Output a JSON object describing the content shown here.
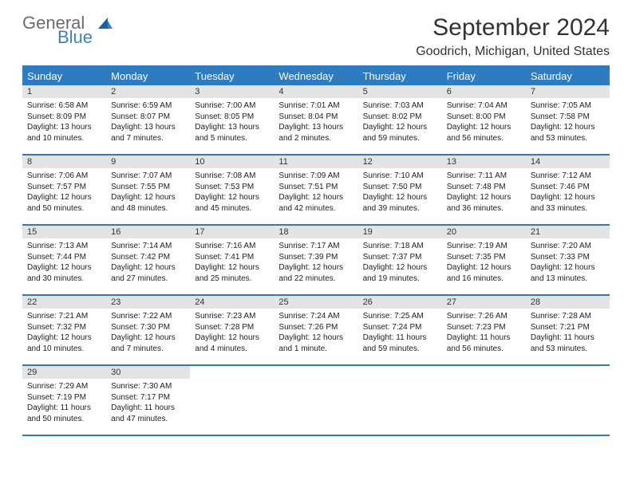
{
  "brand": {
    "general": "General",
    "blue": "Blue"
  },
  "title": "September 2024",
  "location": "Goodrich, Michigan, United States",
  "colors": {
    "header_bg": "#2e7bbf",
    "header_text": "#ffffff",
    "daynum_bg": "#e4e4e4",
    "rule": "#2e7bbf",
    "body_text": "#222222",
    "title_text": "#333333",
    "logo_gray": "#6b6b6b",
    "logo_blue": "#3b82c4",
    "page_bg": "#ffffff"
  },
  "typography": {
    "title_fontsize": 30,
    "location_fontsize": 16,
    "dow_fontsize": 13,
    "daynum_fontsize": 11,
    "body_fontsize": 10,
    "logo_fontsize": 22
  },
  "layout": {
    "cols": 7,
    "rows": 5,
    "leading_blanks": 0,
    "trailing_blanks": 5
  },
  "dow": [
    "Sunday",
    "Monday",
    "Tuesday",
    "Wednesday",
    "Thursday",
    "Friday",
    "Saturday"
  ],
  "days": [
    {
      "n": "1",
      "sunrise": "Sunrise: 6:58 AM",
      "sunset": "Sunset: 8:09 PM",
      "day1": "Daylight: 13 hours",
      "day2": "and 10 minutes."
    },
    {
      "n": "2",
      "sunrise": "Sunrise: 6:59 AM",
      "sunset": "Sunset: 8:07 PM",
      "day1": "Daylight: 13 hours",
      "day2": "and 7 minutes."
    },
    {
      "n": "3",
      "sunrise": "Sunrise: 7:00 AM",
      "sunset": "Sunset: 8:05 PM",
      "day1": "Daylight: 13 hours",
      "day2": "and 5 minutes."
    },
    {
      "n": "4",
      "sunrise": "Sunrise: 7:01 AM",
      "sunset": "Sunset: 8:04 PM",
      "day1": "Daylight: 13 hours",
      "day2": "and 2 minutes."
    },
    {
      "n": "5",
      "sunrise": "Sunrise: 7:03 AM",
      "sunset": "Sunset: 8:02 PM",
      "day1": "Daylight: 12 hours",
      "day2": "and 59 minutes."
    },
    {
      "n": "6",
      "sunrise": "Sunrise: 7:04 AM",
      "sunset": "Sunset: 8:00 PM",
      "day1": "Daylight: 12 hours",
      "day2": "and 56 minutes."
    },
    {
      "n": "7",
      "sunrise": "Sunrise: 7:05 AM",
      "sunset": "Sunset: 7:58 PM",
      "day1": "Daylight: 12 hours",
      "day2": "and 53 minutes."
    },
    {
      "n": "8",
      "sunrise": "Sunrise: 7:06 AM",
      "sunset": "Sunset: 7:57 PM",
      "day1": "Daylight: 12 hours",
      "day2": "and 50 minutes."
    },
    {
      "n": "9",
      "sunrise": "Sunrise: 7:07 AM",
      "sunset": "Sunset: 7:55 PM",
      "day1": "Daylight: 12 hours",
      "day2": "and 48 minutes."
    },
    {
      "n": "10",
      "sunrise": "Sunrise: 7:08 AM",
      "sunset": "Sunset: 7:53 PM",
      "day1": "Daylight: 12 hours",
      "day2": "and 45 minutes."
    },
    {
      "n": "11",
      "sunrise": "Sunrise: 7:09 AM",
      "sunset": "Sunset: 7:51 PM",
      "day1": "Daylight: 12 hours",
      "day2": "and 42 minutes."
    },
    {
      "n": "12",
      "sunrise": "Sunrise: 7:10 AM",
      "sunset": "Sunset: 7:50 PM",
      "day1": "Daylight: 12 hours",
      "day2": "and 39 minutes."
    },
    {
      "n": "13",
      "sunrise": "Sunrise: 7:11 AM",
      "sunset": "Sunset: 7:48 PM",
      "day1": "Daylight: 12 hours",
      "day2": "and 36 minutes."
    },
    {
      "n": "14",
      "sunrise": "Sunrise: 7:12 AM",
      "sunset": "Sunset: 7:46 PM",
      "day1": "Daylight: 12 hours",
      "day2": "and 33 minutes."
    },
    {
      "n": "15",
      "sunrise": "Sunrise: 7:13 AM",
      "sunset": "Sunset: 7:44 PM",
      "day1": "Daylight: 12 hours",
      "day2": "and 30 minutes."
    },
    {
      "n": "16",
      "sunrise": "Sunrise: 7:14 AM",
      "sunset": "Sunset: 7:42 PM",
      "day1": "Daylight: 12 hours",
      "day2": "and 27 minutes."
    },
    {
      "n": "17",
      "sunrise": "Sunrise: 7:16 AM",
      "sunset": "Sunset: 7:41 PM",
      "day1": "Daylight: 12 hours",
      "day2": "and 25 minutes."
    },
    {
      "n": "18",
      "sunrise": "Sunrise: 7:17 AM",
      "sunset": "Sunset: 7:39 PM",
      "day1": "Daylight: 12 hours",
      "day2": "and 22 minutes."
    },
    {
      "n": "19",
      "sunrise": "Sunrise: 7:18 AM",
      "sunset": "Sunset: 7:37 PM",
      "day1": "Daylight: 12 hours",
      "day2": "and 19 minutes."
    },
    {
      "n": "20",
      "sunrise": "Sunrise: 7:19 AM",
      "sunset": "Sunset: 7:35 PM",
      "day1": "Daylight: 12 hours",
      "day2": "and 16 minutes."
    },
    {
      "n": "21",
      "sunrise": "Sunrise: 7:20 AM",
      "sunset": "Sunset: 7:33 PM",
      "day1": "Daylight: 12 hours",
      "day2": "and 13 minutes."
    },
    {
      "n": "22",
      "sunrise": "Sunrise: 7:21 AM",
      "sunset": "Sunset: 7:32 PM",
      "day1": "Daylight: 12 hours",
      "day2": "and 10 minutes."
    },
    {
      "n": "23",
      "sunrise": "Sunrise: 7:22 AM",
      "sunset": "Sunset: 7:30 PM",
      "day1": "Daylight: 12 hours",
      "day2": "and 7 minutes."
    },
    {
      "n": "24",
      "sunrise": "Sunrise: 7:23 AM",
      "sunset": "Sunset: 7:28 PM",
      "day1": "Daylight: 12 hours",
      "day2": "and 4 minutes."
    },
    {
      "n": "25",
      "sunrise": "Sunrise: 7:24 AM",
      "sunset": "Sunset: 7:26 PM",
      "day1": "Daylight: 12 hours",
      "day2": "and 1 minute."
    },
    {
      "n": "26",
      "sunrise": "Sunrise: 7:25 AM",
      "sunset": "Sunset: 7:24 PM",
      "day1": "Daylight: 11 hours",
      "day2": "and 59 minutes."
    },
    {
      "n": "27",
      "sunrise": "Sunrise: 7:26 AM",
      "sunset": "Sunset: 7:23 PM",
      "day1": "Daylight: 11 hours",
      "day2": "and 56 minutes."
    },
    {
      "n": "28",
      "sunrise": "Sunrise: 7:28 AM",
      "sunset": "Sunset: 7:21 PM",
      "day1": "Daylight: 11 hours",
      "day2": "and 53 minutes."
    },
    {
      "n": "29",
      "sunrise": "Sunrise: 7:29 AM",
      "sunset": "Sunset: 7:19 PM",
      "day1": "Daylight: 11 hours",
      "day2": "and 50 minutes."
    },
    {
      "n": "30",
      "sunrise": "Sunrise: 7:30 AM",
      "sunset": "Sunset: 7:17 PM",
      "day1": "Daylight: 11 hours",
      "day2": "and 47 minutes."
    }
  ]
}
